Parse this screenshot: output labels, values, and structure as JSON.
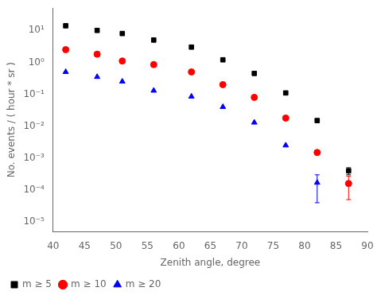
{
  "chart_data": {
    "type": "scatter",
    "xlabel": "Zenith angle, degree",
    "ylabel": "No. events / ( hour * sr )",
    "log": "y",
    "grid": false,
    "legend": "lower left",
    "xlim": [
      40,
      90
    ],
    "ylim": [
      5e-06,
      50
    ],
    "xticks": [
      40,
      45,
      50,
      55,
      60,
      65,
      70,
      75,
      80,
      85,
      90
    ],
    "yticks": [
      {
        "value": 1e-05,
        "label": "10⁻⁵"
      },
      {
        "value": 0.0001,
        "label": "10⁻⁴"
      },
      {
        "value": 0.001,
        "label": "10⁻³"
      },
      {
        "value": 0.01,
        "label": "10⁻²"
      },
      {
        "value": 0.1,
        "label": "10⁻¹"
      },
      {
        "value": 1,
        "label": "10⁰"
      },
      {
        "value": 10,
        "label": "10¹"
      }
    ],
    "series": [
      {
        "name": "m ≥ 5",
        "color": "#000000",
        "marker": "square",
        "x": [
          42,
          47,
          51,
          56,
          62,
          67,
          72,
          77,
          82,
          87
        ],
        "values": [
          14,
          10,
          8,
          5,
          3,
          1.2,
          0.45,
          0.11,
          0.015,
          0.0004
        ],
        "yerr_low": [
          0,
          0,
          0,
          0,
          0,
          0,
          0,
          0,
          0,
          0.0001
        ],
        "yerr_high": [
          0,
          0,
          0,
          0,
          0,
          0,
          0,
          0,
          0,
          0.0001
        ]
      },
      {
        "name": "m ≥ 10",
        "color": "#ff0000",
        "marker": "circle",
        "x": [
          42,
          47,
          51,
          56,
          62,
          67,
          72,
          77,
          82,
          87
        ],
        "values": [
          2.5,
          1.8,
          1.1,
          0.85,
          0.5,
          0.2,
          0.08,
          0.018,
          0.0015,
          0.00016
        ],
        "yerr_low": [
          0,
          0,
          0,
          0,
          0,
          0,
          0,
          0,
          0,
          0.00011
        ],
        "yerr_high": [
          0,
          0,
          0,
          0,
          0,
          0,
          0,
          0,
          0,
          0.00011
        ]
      },
      {
        "name": "m ≥ 20",
        "color": "#0000ff",
        "marker": "triangle",
        "x": [
          42,
          47,
          51,
          56,
          62,
          67,
          72,
          77,
          82
        ],
        "values": [
          0.5,
          0.35,
          0.25,
          0.13,
          0.085,
          0.04,
          0.013,
          0.0025,
          0.00017
        ],
        "yerr_low": [
          0,
          0,
          0,
          0,
          0,
          0,
          0,
          0,
          0.00013
        ],
        "yerr_high": [
          0,
          0,
          0,
          0,
          0,
          0,
          0,
          0,
          0.00013
        ]
      }
    ]
  }
}
